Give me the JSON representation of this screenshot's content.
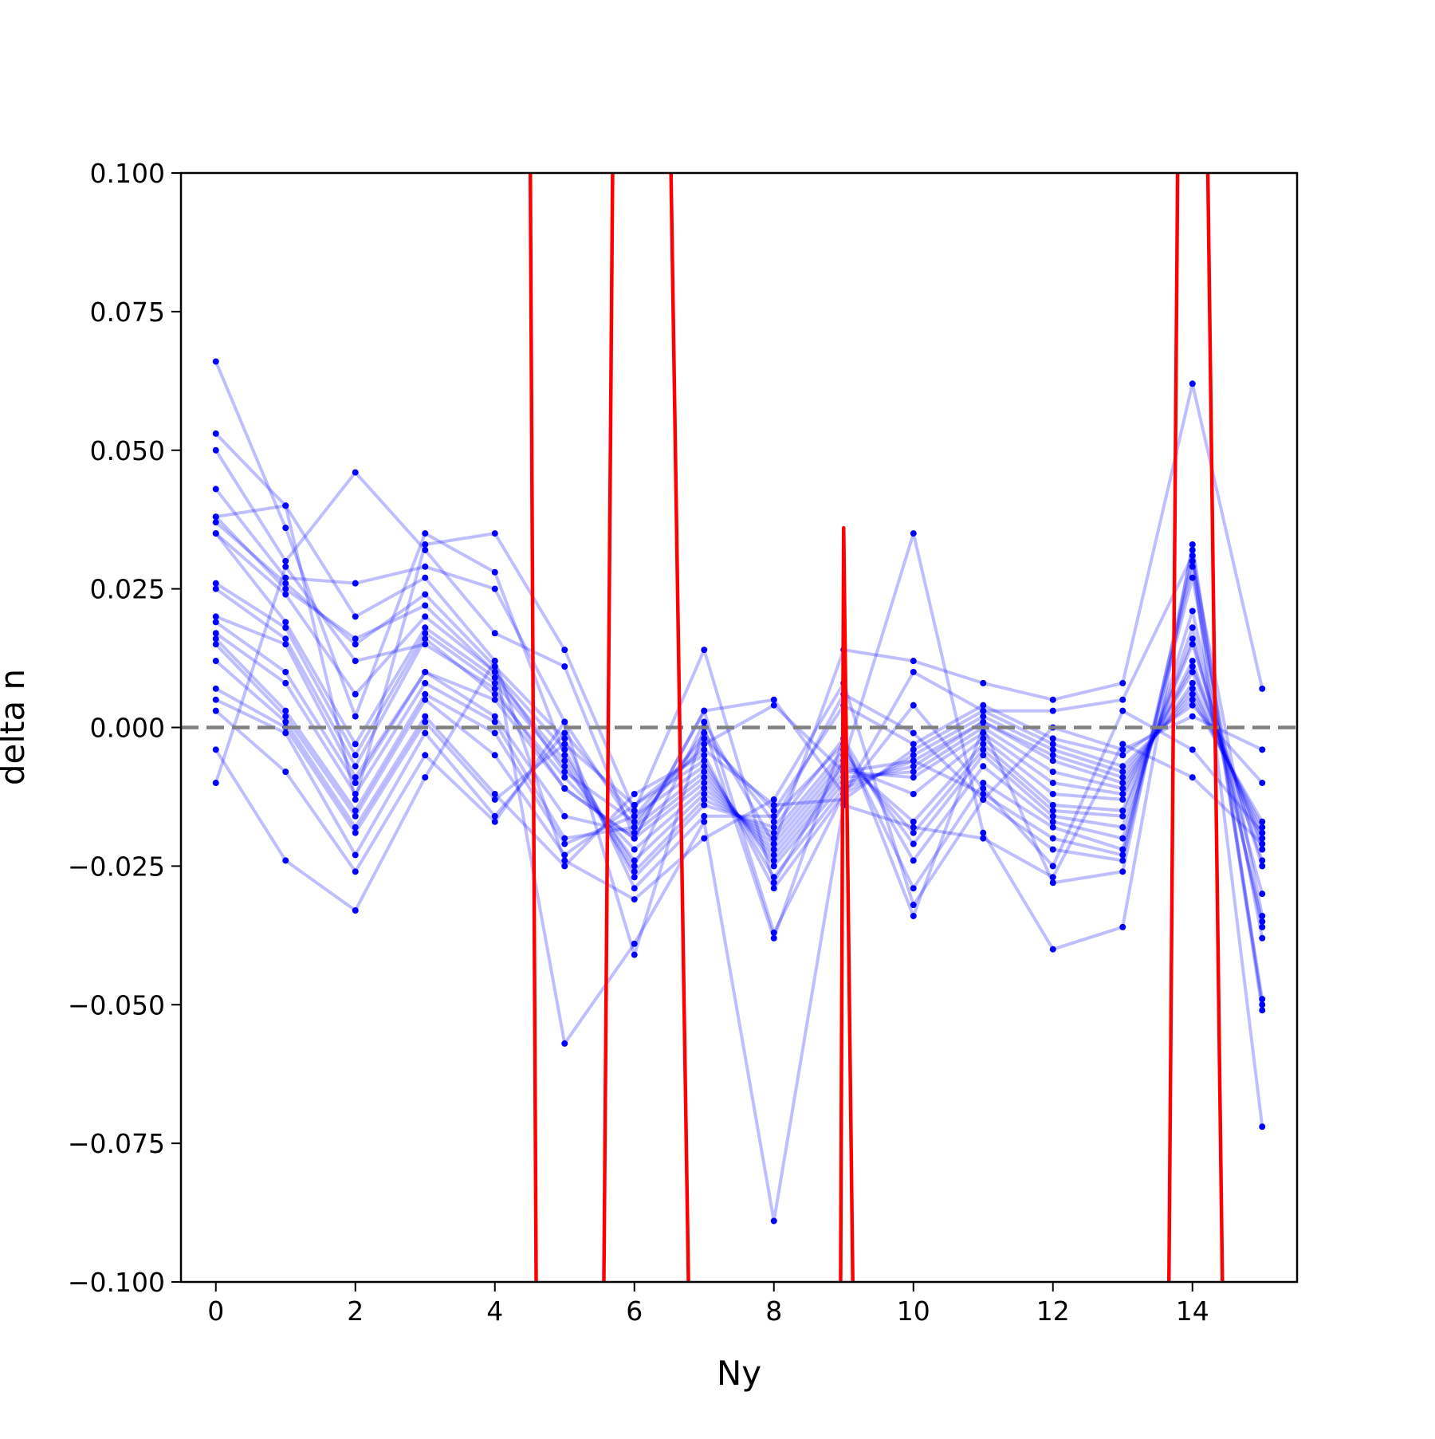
{
  "chart_data": {
    "type": "line",
    "xlabel": "Ny",
    "ylabel": "delta n",
    "xlim": [
      -0.5,
      15.5
    ],
    "ylim": [
      -0.1,
      0.1
    ],
    "xticks": [
      0,
      2,
      4,
      6,
      8,
      10,
      12,
      14
    ],
    "xtick_labels": [
      "0",
      "2",
      "4",
      "6",
      "8",
      "10",
      "12",
      "14"
    ],
    "yticks": [
      -0.1,
      -0.075,
      -0.05,
      -0.025,
      0.0,
      0.025,
      0.05,
      0.075,
      0.1
    ],
    "ytick_labels": [
      "−0.100",
      "−0.075",
      "−0.050",
      "−0.025",
      "0.000",
      "0.025",
      "0.050",
      "0.075",
      "0.100"
    ],
    "grid": false,
    "reference_line": {
      "y": 0.0,
      "style": "dashed",
      "color": "#808080"
    },
    "colors": {
      "ensemble": "#0000ff",
      "mean": "#ff0000",
      "reference": "#808080"
    },
    "x": [
      0,
      1,
      2,
      3,
      4,
      5,
      6,
      7,
      8,
      9,
      10,
      11,
      12,
      13,
      14,
      15
    ],
    "ensemble_series": [
      {
        "values": [
          0.066,
          0.036,
          0.002,
          0.035,
          0.028,
          -0.005,
          -0.025,
          0.001,
          -0.021,
          0.014,
          0.012,
          0.008,
          0.005,
          0.008,
          0.062,
          0.007
        ]
      },
      {
        "values": [
          0.053,
          0.04,
          -0.013,
          0.033,
          0.035,
          0.014,
          -0.015,
          0.014,
          -0.028,
          -0.006,
          0.035,
          -0.019,
          -0.04,
          -0.036,
          0.033,
          -0.05
        ]
      },
      {
        "values": [
          0.05,
          0.03,
          0.046,
          0.032,
          0.017,
          0.011,
          -0.02,
          0.003,
          0.005,
          -0.012,
          0.01,
          0.003,
          0.003,
          0.005,
          0.031,
          -0.072
        ]
      },
      {
        "values": [
          0.043,
          0.027,
          0.026,
          0.029,
          0.025,
          0.001,
          -0.041,
          0.0,
          -0.038,
          -0.002,
          -0.034,
          0.0,
          -0.028,
          -0.026,
          0.032,
          -0.051
        ]
      },
      {
        "values": [
          0.038,
          0.04,
          0.02,
          0.027,
          0.012,
          -0.024,
          -0.031,
          -0.02,
          -0.013,
          0.008,
          -0.032,
          -0.013,
          -0.022,
          -0.024,
          0.029,
          -0.049
        ]
      },
      {
        "values": [
          0.037,
          0.026,
          0.015,
          0.024,
          0.011,
          -0.002,
          -0.029,
          -0.016,
          -0.016,
          -0.003,
          -0.029,
          -0.01,
          -0.018,
          -0.022,
          0.027,
          -0.038
        ]
      },
      {
        "values": [
          0.035,
          0.024,
          0.006,
          0.02,
          0.01,
          -0.004,
          -0.027,
          -0.014,
          -0.018,
          -0.002,
          -0.024,
          -0.007,
          -0.017,
          -0.02,
          0.021,
          -0.036
        ]
      },
      {
        "values": [
          0.035,
          0.019,
          -0.003,
          0.018,
          0.009,
          -0.006,
          -0.026,
          -0.013,
          -0.019,
          -0.004,
          -0.021,
          -0.005,
          -0.016,
          -0.018,
          0.018,
          -0.035
        ]
      },
      {
        "values": [
          0.026,
          0.018,
          -0.005,
          0.017,
          0.008,
          -0.007,
          -0.024,
          -0.012,
          -0.02,
          -0.005,
          -0.019,
          -0.004,
          -0.015,
          -0.016,
          0.016,
          -0.03
        ]
      },
      {
        "values": [
          0.025,
          0.016,
          -0.007,
          0.016,
          0.006,
          -0.009,
          -0.022,
          -0.011,
          -0.021,
          -0.006,
          -0.017,
          -0.003,
          -0.014,
          -0.015,
          0.015,
          -0.025
        ]
      },
      {
        "values": [
          0.02,
          0.015,
          -0.009,
          0.01,
          0.005,
          -0.011,
          -0.02,
          -0.01,
          -0.022,
          -0.007,
          -0.012,
          -0.002,
          -0.012,
          -0.013,
          0.012,
          -0.024
        ]
      },
      {
        "values": [
          0.019,
          0.01,
          -0.01,
          0.01,
          0.002,
          -0.016,
          -0.019,
          -0.009,
          -0.023,
          -0.008,
          -0.009,
          -0.001,
          -0.01,
          -0.012,
          0.011,
          -0.022
        ]
      },
      {
        "values": [
          0.017,
          0.008,
          -0.012,
          0.008,
          0.001,
          -0.02,
          -0.018,
          -0.008,
          -0.024,
          -0.009,
          -0.008,
          0.0,
          -0.008,
          -0.011,
          0.01,
          -0.021
        ]
      },
      {
        "values": [
          0.016,
          0.003,
          -0.015,
          0.006,
          -0.001,
          -0.021,
          -0.016,
          -0.007,
          -0.025,
          -0.01,
          -0.007,
          0.001,
          -0.006,
          -0.01,
          0.008,
          -0.02
        ]
      },
      {
        "values": [
          0.015,
          0.002,
          -0.016,
          0.005,
          -0.005,
          -0.023,
          -0.014,
          -0.006,
          -0.027,
          -0.011,
          -0.006,
          0.001,
          -0.005,
          -0.009,
          0.007,
          -0.019
        ]
      },
      {
        "values": [
          0.012,
          0.001,
          -0.018,
          0.002,
          -0.012,
          -0.025,
          -0.012,
          -0.005,
          -0.029,
          -0.012,
          -0.005,
          0.002,
          -0.004,
          -0.008,
          0.006,
          -0.018
        ]
      },
      {
        "values": [
          0.007,
          0.0,
          -0.019,
          0.001,
          -0.013,
          -0.003,
          -0.014,
          -0.004,
          -0.014,
          -0.013,
          -0.004,
          0.003,
          -0.003,
          -0.007,
          0.005,
          -0.017
        ]
      },
      {
        "values": [
          0.005,
          -0.001,
          -0.023,
          -0.001,
          -0.016,
          -0.001,
          -0.016,
          -0.002,
          -0.015,
          0.004,
          -0.003,
          0.004,
          -0.002,
          -0.005,
          0.004,
          -0.01
        ]
      },
      {
        "values": [
          0.003,
          -0.008,
          -0.026,
          -0.005,
          -0.017,
          0.001,
          -0.018,
          -0.001,
          -0.017,
          0.006,
          -0.001,
          -0.013,
          0.0,
          -0.004,
          0.002,
          -0.004
        ]
      },
      {
        "values": [
          -0.004,
          -0.024,
          -0.033,
          -0.009,
          0.012,
          -0.057,
          -0.039,
          -0.017,
          -0.089,
          -0.014,
          -0.018,
          -0.02,
          -0.027,
          -0.003,
          -0.009,
          -0.021
        ]
      },
      {
        "values": [
          -0.01,
          0.029,
          0.012,
          0.015,
          0.007,
          -0.011,
          -0.02,
          0.003,
          -0.037,
          -0.012,
          0.004,
          -0.011,
          -0.025,
          0.003,
          -0.004,
          -0.019
        ]
      },
      {
        "values": [
          0.038,
          0.025,
          0.016,
          0.022,
          0.01,
          -0.008,
          -0.017,
          -0.003,
          0.004,
          -0.008,
          -0.006,
          -0.012,
          -0.02,
          -0.023,
          0.03,
          -0.034
        ]
      }
    ],
    "mean_series": {
      "x": [
        4.5,
        4.6,
        5.55,
        5.7,
        6.5,
        6.8,
        8.95,
        9.0,
        9.15,
        13.65,
        13.8,
        14.2,
        14.45
      ],
      "values": [
        0.12,
        -0.12,
        -0.12,
        0.12,
        0.12,
        -0.12,
        -0.12,
        0.036,
        -0.12,
        -0.12,
        0.12,
        0.12,
        -0.12
      ]
    }
  }
}
